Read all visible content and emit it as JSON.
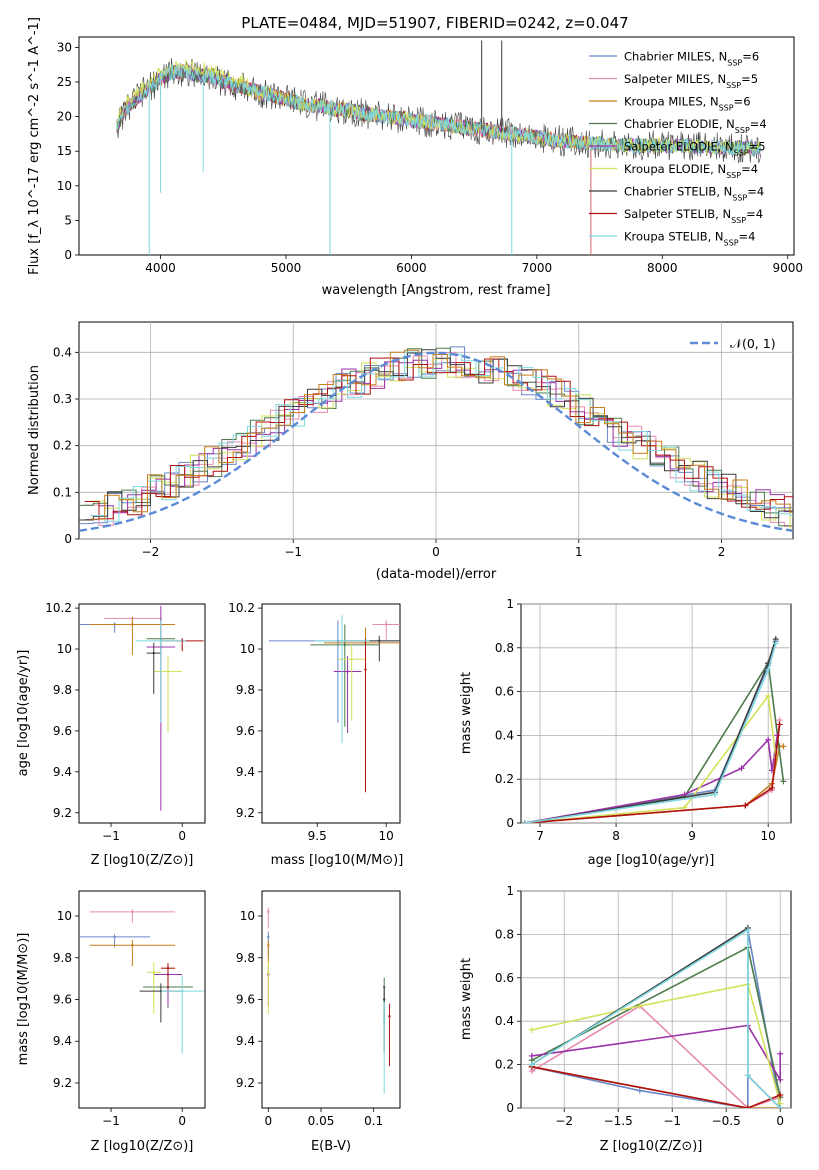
{
  "figure": {
    "title": "PLATE=0484, MJD=51907, FIBERID=0242, z=0.047"
  },
  "colors": [
    "#6a87c9",
    "#e88bb0",
    "#c77d1c",
    "#4b7a4b",
    "#9b33a8",
    "#d4e15a",
    "#3c3c3c",
    "#b01010",
    "#7fd8e0"
  ],
  "chart_data": [
    {
      "id": "spectrum",
      "type": "line",
      "xlabel": "wavelength [Angstrom, rest frame]",
      "ylabel": "Flux [f_λ 10^-17 erg cm^-2 s^-1 A^-1]",
      "xlim": [
        3350,
        9050
      ],
      "ylim": [
        0,
        31.5
      ],
      "xticks": [
        4000,
        5000,
        6000,
        7000,
        8000,
        9000
      ],
      "yticks": [
        0,
        5,
        10,
        15,
        20,
        25,
        30
      ],
      "legend_position": "right",
      "legend": [
        {
          "model": "Chabrier MILES",
          "nssp": "6"
        },
        {
          "model": "Salpeter MILES",
          "nssp": "5"
        },
        {
          "model": "Kroupa MILES",
          "nssp": "6"
        },
        {
          "model": "Chabrier ELODIE",
          "nssp": "4"
        },
        {
          "model": "Salpeter ELODIE",
          "nssp": "5"
        },
        {
          "model": "Kroupa ELODIE",
          "nssp": "4"
        },
        {
          "model": "Chabrier STELIB",
          "nssp": "4"
        },
        {
          "model": "Salpeter STELIB",
          "nssp": "4"
        },
        {
          "model": "Kroupa STELIB",
          "nssp": "4"
        }
      ],
      "continuum": {
        "x": [
          3650,
          3720,
          3800,
          3900,
          4000,
          4100,
          4200,
          4300,
          4400,
          4500,
          4600,
          4700,
          4800,
          4900,
          5000,
          5100,
          5200,
          5300,
          5400,
          5500,
          5600,
          5800,
          6000,
          6200,
          6400,
          6600,
          6800,
          7000,
          7200,
          7400,
          7600,
          7800,
          8000,
          8200,
          8400,
          8600,
          8800
        ],
        "y": [
          18.5,
          21,
          22.5,
          24,
          25.5,
          26.5,
          26.5,
          26,
          25.8,
          25,
          24.5,
          24,
          23.5,
          23,
          22.5,
          22,
          21.5,
          21.5,
          21,
          21,
          20.5,
          20,
          19.5,
          19,
          18.5,
          18,
          17.5,
          17,
          16.5,
          16.2,
          16,
          15.8,
          15.8,
          15.8,
          15.6,
          15.5,
          15.4
        ]
      },
      "spikes": [
        {
          "x": 3910,
          "y": 0
        },
        {
          "x": 4000,
          "y": 9
        },
        {
          "x": 4340,
          "y": 12
        },
        {
          "x": 5350,
          "y": 0
        },
        {
          "x": 6560,
          "y": 31
        },
        {
          "x": 6720,
          "y": 31
        },
        {
          "x": 6800,
          "y": 0
        }
      ]
    },
    {
      "id": "residuals",
      "type": "line",
      "xlabel": "(data-model)/error",
      "ylabel": "Normed distribution",
      "xlim": [
        -2.5,
        2.5
      ],
      "ylim": [
        0,
        0.465
      ],
      "xticks": [
        -2,
        -1,
        0,
        1,
        2
      ],
      "yticks": [
        0.0,
        0.1,
        0.2,
        0.3,
        0.4
      ],
      "grid": true,
      "legend_position": "top-right",
      "series_label": "𝒩(0, 1)"
    },
    {
      "id": "age-vs-Z",
      "type": "scatter",
      "xlabel": "Z [log10(Z/Z⊙)]",
      "ylabel": "age [log10(age/yr)]",
      "xlim": [
        -1.45,
        0.32
      ],
      "ylim": [
        9.15,
        10.22
      ],
      "xticks": [
        -1,
        0
      ],
      "yticks": [
        9.2,
        9.4,
        9.6,
        9.8,
        10.0,
        10.2
      ],
      "points": [
        {
          "x": -0.95,
          "y": 10.12,
          "xerr": 0.5,
          "yerr": 0.04
        },
        {
          "x": -0.7,
          "y": 10.15,
          "xerr": 0.4,
          "yerr": 0.03
        },
        {
          "x": -0.7,
          "y": 10.12,
          "xerr": 0.6,
          "yerr": 0.15
        },
        {
          "x": -0.3,
          "y": 10.05,
          "xerr": 0.2,
          "yerr": 0.4
        },
        {
          "x": -0.3,
          "y": 10.01,
          "xerr": 0.2,
          "yerr": 0.8
        },
        {
          "x": -0.2,
          "y": 9.89,
          "xerr": 0.2,
          "yerr": 0.3
        },
        {
          "x": -0.4,
          "y": 9.98,
          "xerr": 0.1,
          "yerr": 0.2
        },
        {
          "x": 0.0,
          "y": 10.04,
          "xerr": 0.3,
          "yerr": 0.05
        },
        {
          "x": -0.3,
          "y": 10.04,
          "xerr": 0.35,
          "yerr": 0.4
        }
      ]
    },
    {
      "id": "age-vs-mass",
      "type": "scatter",
      "xlabel": "mass [log10(M/M⊙)]",
      "ylabel": "",
      "xlim": [
        9.1,
        10.1
      ],
      "ylim": [
        9.15,
        10.22
      ],
      "xticks": [
        9.5,
        10.0
      ],
      "yticks": [
        9.2,
        9.4,
        9.6,
        9.8,
        10.0,
        10.2
      ],
      "points": [
        {
          "x": 9.65,
          "y": 10.04,
          "xerr": 0.5,
          "yerr": 0.4
        },
        {
          "x": 10.0,
          "y": 10.12,
          "xerr": 0.1,
          "yerr": 0.08
        },
        {
          "x": 9.85,
          "y": 10.03,
          "xerr": 0.3,
          "yerr": 0.3
        },
        {
          "x": 9.7,
          "y": 10.02,
          "xerr": 0.25,
          "yerr": 0.4
        },
        {
          "x": 9.72,
          "y": 9.89,
          "xerr": 0.1,
          "yerr": 0.3
        },
        {
          "x": 9.75,
          "y": 9.95,
          "xerr": 0.1,
          "yerr": 0.3
        },
        {
          "x": 9.95,
          "y": 10.04,
          "xerr": 0.3,
          "yerr": 0.1
        },
        {
          "x": 9.85,
          "y": 9.9,
          "xerr": 0.0,
          "yerr": 0.6
        },
        {
          "x": 9.68,
          "y": 10.04,
          "xerr": 0.2,
          "yerr": 0.5
        }
      ]
    },
    {
      "id": "mass-weight-vs-age",
      "type": "line",
      "xlabel": "age [log10(age/yr)]",
      "ylabel": "mass weight",
      "xlim": [
        6.75,
        10.3
      ],
      "ylim": [
        0,
        1.0
      ],
      "xticks": [
        7,
        8,
        9,
        10
      ],
      "yticks": [
        0.0,
        0.2,
        0.4,
        0.6,
        0.8,
        1.0
      ],
      "grid": true,
      "series": [
        {
          "name": "",
          "x": [
            6.8,
            9.3,
            10.0,
            10.1
          ],
          "y": [
            0.0,
            0.15,
            0.72,
            0.83
          ]
        },
        {
          "name": "",
          "x": [
            6.8,
            9.7,
            10.05,
            10.15
          ],
          "y": [
            0.0,
            0.08,
            0.15,
            0.47
          ]
        },
        {
          "name": "",
          "x": [
            6.8,
            9.7,
            10.05,
            10.15,
            10.2
          ],
          "y": [
            0.0,
            0.08,
            0.18,
            0.35,
            0.35
          ]
        },
        {
          "name": "",
          "x": [
            6.8,
            8.9,
            10.0,
            10.2
          ],
          "y": [
            0.0,
            0.12,
            0.73,
            0.19
          ]
        },
        {
          "name": "",
          "x": [
            6.8,
            8.9,
            9.65,
            10.0,
            10.05,
            10.12
          ],
          "y": [
            0.0,
            0.13,
            0.25,
            0.38,
            0.24,
            0.4
          ]
        },
        {
          "name": "",
          "x": [
            6.8,
            8.9,
            10.0,
            10.1
          ],
          "y": [
            0.0,
            0.07,
            0.58,
            0.3
          ]
        },
        {
          "name": "",
          "x": [
            6.8,
            9.3,
            10.0,
            10.1
          ],
          "y": [
            0.0,
            0.14,
            0.73,
            0.84
          ]
        },
        {
          "name": "",
          "x": [
            6.8,
            9.7,
            10.05,
            10.15
          ],
          "y": [
            0.0,
            0.08,
            0.16,
            0.45
          ]
        },
        {
          "name": "",
          "x": [
            6.8,
            9.3,
            10.0,
            10.1
          ],
          "y": [
            0.0,
            0.13,
            0.7,
            0.82
          ]
        }
      ]
    },
    {
      "id": "mass-vs-Z",
      "type": "scatter",
      "xlabel": "Z [log10(Z/Z⊙)]",
      "ylabel": "mass [log10(M/M⊙)]",
      "xlim": [
        -1.45,
        0.32
      ],
      "ylim": [
        9.08,
        10.12
      ],
      "xticks": [
        -1,
        0
      ],
      "yticks": [
        9.2,
        9.4,
        9.6,
        9.8,
        10.0
      ],
      "points": [
        {
          "x": -0.95,
          "y": 9.9,
          "xerr": 0.5,
          "yerr": 0.05
        },
        {
          "x": -0.7,
          "y": 10.02,
          "xerr": 0.6,
          "yerr": 0.05
        },
        {
          "x": -0.7,
          "y": 9.86,
          "xerr": 0.6,
          "yerr": 0.1
        },
        {
          "x": -0.2,
          "y": 9.66,
          "xerr": 0.35,
          "yerr": 0.1
        },
        {
          "x": -0.2,
          "y": 9.72,
          "xerr": 0.2,
          "yerr": 0.15
        },
        {
          "x": -0.4,
          "y": 9.73,
          "xerr": 0.1,
          "yerr": 0.2
        },
        {
          "x": -0.3,
          "y": 9.64,
          "xerr": 0.3,
          "yerr": 0.15
        },
        {
          "x": -0.2,
          "y": 9.75,
          "xerr": 0.1,
          "yerr": 0.1
        },
        {
          "x": 0.0,
          "y": 9.64,
          "xerr": 0.3,
          "yerr": 0.3
        }
      ]
    },
    {
      "id": "mass-vs-ebv",
      "type": "scatter",
      "xlabel": "E(B-V)",
      "ylabel": "",
      "xlim": [
        -0.006,
        0.125
      ],
      "ylim": [
        9.08,
        10.12
      ],
      "xticks": [
        0.0,
        0.05,
        0.1
      ],
      "yticks": [
        9.2,
        9.4,
        9.6,
        9.8,
        10.0
      ],
      "points": [
        {
          "x": 0.0,
          "y": 9.9,
          "xerr": 0,
          "yerr": 0.1
        },
        {
          "x": 0.0,
          "y": 10.02,
          "xerr": 0,
          "yerr": 0.08
        },
        {
          "x": 0.0,
          "y": 9.86,
          "xerr": 0,
          "yerr": 0.1
        },
        {
          "x": 0.11,
          "y": 9.66,
          "xerr": 0,
          "yerr": 0.18
        },
        {
          "x": 0.0,
          "y": 9.72,
          "xerr": 0,
          "yerr": 0.15
        },
        {
          "x": 0.0,
          "y": 9.73,
          "xerr": 0,
          "yerr": 0.2
        },
        {
          "x": 0.11,
          "y": 9.6,
          "xerr": 0,
          "yerr": 0.25
        },
        {
          "x": 0.115,
          "y": 9.52,
          "xerr": 0,
          "yerr": 0.24
        },
        {
          "x": 0.11,
          "y": 9.5,
          "xerr": 0,
          "yerr": 0.35
        }
      ]
    },
    {
      "id": "mass-weight-vs-Z",
      "type": "line",
      "xlabel": "Z [log10(Z/Z⊙)]",
      "ylabel": "mass weight",
      "xlim": [
        -2.4,
        0.1
      ],
      "ylim": [
        0,
        1.0
      ],
      "xticks": [
        -2.0,
        -1.5,
        -1.0,
        -0.5,
        0.0
      ],
      "yticks": [
        0.0,
        0.2,
        0.4,
        0.6,
        0.8,
        1.0
      ],
      "grid": true,
      "series": [
        {
          "name": "",
          "x": [
            -2.3,
            -1.3,
            -0.3,
            -0.3,
            0.0
          ],
          "y": [
            0.19,
            0.08,
            0.0,
            0.82,
            0.0
          ]
        },
        {
          "name": "",
          "x": [
            -2.3,
            -1.3,
            -0.3,
            0.0
          ],
          "y": [
            0.17,
            0.47,
            0.0,
            0.05
          ]
        },
        {
          "name": "",
          "x": [
            -2.3,
            -0.3,
            0.0
          ],
          "y": [
            0.19,
            0.0,
            0.0
          ]
        },
        {
          "name": "",
          "x": [
            -2.3,
            -0.3,
            0.0
          ],
          "y": [
            0.22,
            0.74,
            0.05
          ]
        },
        {
          "name": "",
          "x": [
            -2.3,
            -0.3,
            0.0,
            0.0
          ],
          "y": [
            0.24,
            0.38,
            0.13,
            0.25
          ]
        },
        {
          "name": "",
          "x": [
            -2.3,
            -1.3,
            -0.3,
            0.0
          ],
          "y": [
            0.36,
            0.47,
            0.57,
            0.02
          ]
        },
        {
          "name": "",
          "x": [
            -2.3,
            -0.3,
            -0.3,
            0.0
          ],
          "y": [
            0.2,
            0.83,
            0.15,
            0.0
          ]
        },
        {
          "name": "",
          "x": [
            -2.3,
            -0.3,
            0.0
          ],
          "y": [
            0.19,
            0.0,
            0.06
          ]
        },
        {
          "name": "",
          "x": [
            -2.3,
            -0.3,
            -0.3,
            0.0
          ],
          "y": [
            0.2,
            0.82,
            0.15,
            0.0
          ]
        }
      ]
    }
  ]
}
